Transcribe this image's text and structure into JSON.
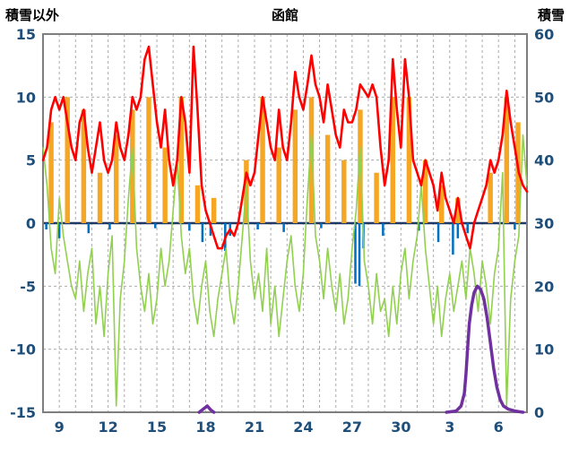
{
  "chart_data": {
    "type": "line",
    "title": "函館",
    "axes": {
      "left": {
        "label": "積雪以外",
        "min": -15,
        "max": 15,
        "tick_values": [
          15,
          10,
          5,
          0,
          -5,
          -10,
          -15
        ]
      },
      "right": {
        "label": "積雪",
        "min": 0,
        "max": 60,
        "tick_values": [
          60,
          50,
          40,
          30,
          20,
          10,
          0
        ]
      },
      "x": {
        "min": 0,
        "max": 29.75,
        "grid_step": 1,
        "tick_positions": [
          1,
          4,
          7,
          10,
          13,
          16,
          19,
          22,
          25,
          28
        ],
        "tick_labels": [
          "9",
          "12",
          "15",
          "18",
          "21",
          "24",
          "27",
          "30",
          "3",
          "6"
        ]
      }
    },
    "style": {
      "plot_bg": "#FFFFFF",
      "grid_color": "#ABABAB",
      "border_color": "#7F7F7F",
      "zero_line_color": "#1F3864",
      "tick_label_color": "#1F4E79"
    },
    "series": [
      {
        "name": "orange-bars",
        "type": "bar",
        "axis": "left",
        "color": "#F5A623",
        "bar_width": 0.3,
        "points": [
          [
            0.5,
            8
          ],
          [
            1.5,
            10
          ],
          [
            2.5,
            9
          ],
          [
            3.5,
            4
          ],
          [
            4.5,
            7
          ],
          [
            5.5,
            9
          ],
          [
            6.5,
            10
          ],
          [
            7.5,
            6
          ],
          [
            8.5,
            10
          ],
          [
            9.5,
            3
          ],
          [
            10.5,
            2
          ],
          [
            12.5,
            5
          ],
          [
            13.5,
            10
          ],
          [
            14.5,
            6
          ],
          [
            15.5,
            9
          ],
          [
            16.5,
            10
          ],
          [
            17.5,
            7
          ],
          [
            18.5,
            5
          ],
          [
            19.5,
            9
          ],
          [
            20.5,
            4
          ],
          [
            21.5,
            10
          ],
          [
            22.5,
            10
          ],
          [
            23.5,
            5
          ],
          [
            24.5,
            3
          ],
          [
            25.5,
            2
          ],
          [
            27.5,
            4
          ],
          [
            28.5,
            10
          ],
          [
            29.2,
            8
          ]
        ]
      },
      {
        "name": "blue-bars",
        "type": "bar",
        "axis": "left",
        "color": "#0070C0",
        "bar_width": 0.14,
        "points": [
          [
            0.2,
            -0.5
          ],
          [
            1.0,
            -1.2
          ],
          [
            2.8,
            -0.8
          ],
          [
            4.1,
            -0.5
          ],
          [
            6.9,
            -0.4
          ],
          [
            9.0,
            -0.6
          ],
          [
            9.8,
            -1.5
          ],
          [
            10.3,
            -1.0
          ],
          [
            11.2,
            -2.2
          ],
          [
            11.5,
            -1.0
          ],
          [
            13.2,
            -0.5
          ],
          [
            14.8,
            -0.7
          ],
          [
            17.1,
            -0.4
          ],
          [
            19.2,
            -4.8
          ],
          [
            19.45,
            -5.0
          ],
          [
            19.7,
            -2.0
          ],
          [
            20.9,
            -1.0
          ],
          [
            23.1,
            -0.6
          ],
          [
            24.3,
            -1.5
          ],
          [
            25.2,
            -2.5
          ],
          [
            25.5,
            -1.2
          ],
          [
            26.1,
            -0.8
          ],
          [
            29.0,
            -0.5
          ]
        ]
      },
      {
        "name": "green-line",
        "type": "line",
        "axis": "left",
        "color": "#92D050",
        "line_width": 1.6,
        "x0": 0,
        "dx": 0.25,
        "values": [
          6,
          3,
          -2,
          -4,
          2,
          -1,
          -3,
          -5,
          -6,
          -3,
          -7,
          -4,
          -2,
          -8,
          -5,
          -9,
          -4,
          -1,
          -14.5,
          -6,
          -3,
          2,
          6,
          -2,
          -5,
          -7,
          -4,
          -8,
          -6,
          -2,
          -5,
          -3,
          1,
          5,
          -1,
          -4,
          -2,
          -6,
          -8,
          -5,
          -3,
          -7,
          -9,
          -6,
          -4,
          -2,
          -6,
          -8,
          -5,
          -1,
          3,
          -3,
          -6,
          -4,
          -7,
          -2,
          -8,
          -5,
          -9,
          -6,
          -3,
          -1,
          -5,
          -7,
          -4,
          2,
          7,
          -1,
          -3,
          -6,
          -2,
          -5,
          -7,
          -4,
          -8,
          -6,
          -2,
          1,
          6,
          -3,
          -5,
          -8,
          -4,
          -7,
          -6,
          -9,
          -5,
          -8,
          -4,
          -2,
          -6,
          -3,
          -1,
          3,
          -2,
          -5,
          -8,
          -5,
          -9,
          -6,
          -4,
          -7,
          -5,
          -3,
          -6,
          -2,
          -4,
          -7,
          -3,
          -5,
          -8,
          -4,
          -2,
          4,
          -14.5,
          -6,
          -3,
          -1,
          7,
          3
        ]
      },
      {
        "name": "red-line",
        "type": "line",
        "axis": "left",
        "color": "#FF0000",
        "line_width": 2.6,
        "x0": 0,
        "dx": 0.25,
        "values": [
          5,
          6,
          9,
          10,
          9,
          10,
          8,
          6,
          5,
          8,
          9,
          6,
          4,
          6,
          8,
          5,
          4,
          5,
          8,
          6,
          5,
          7,
          10,
          9,
          10,
          13,
          14,
          11,
          8,
          6,
          9,
          5,
          3,
          5,
          10,
          8,
          4,
          14,
          9,
          3,
          1,
          0,
          -1,
          -2,
          -2,
          -1,
          -0.5,
          -1,
          0,
          2,
          4,
          3,
          4,
          7,
          10,
          8,
          6,
          5,
          9,
          6,
          5,
          8,
          12,
          10,
          9,
          11,
          13.3,
          11,
          10,
          8,
          11,
          9,
          7,
          6,
          9,
          8,
          8,
          9,
          11,
          10.5,
          10,
          11,
          10,
          6,
          3,
          5,
          13,
          9,
          6,
          13,
          10,
          5,
          4,
          3,
          5,
          4,
          3,
          1,
          4,
          2,
          1,
          0,
          2,
          0,
          -1,
          -2,
          0,
          1,
          2,
          3,
          5,
          4,
          5,
          7,
          10.5,
          8,
          6,
          4,
          3,
          2.5
        ]
      },
      {
        "name": "purple-line-bump",
        "type": "line",
        "axis": "right",
        "color": "#7030A0",
        "line_width": 3.5,
        "x": [
          9.6,
          9.9,
          10.1,
          10.3,
          10.5
        ],
        "values": [
          0,
          0.6,
          1,
          0.4,
          0
        ]
      },
      {
        "name": "purple-line",
        "type": "line",
        "axis": "right",
        "color": "#7030A0",
        "line_width": 3.5,
        "x": [
          24.8,
          25.4,
          25.7,
          25.9,
          26.0,
          26.1,
          26.2,
          26.35,
          26.5,
          26.7,
          26.9,
          27.1,
          27.3,
          27.5,
          27.7,
          27.9,
          28.1,
          28.3,
          28.6,
          29.0,
          29.5
        ],
        "values": [
          0,
          0.2,
          1,
          3,
          6,
          10,
          14,
          17,
          19,
          20,
          19.5,
          18,
          15,
          11,
          7,
          4,
          2,
          1,
          0.5,
          0.2,
          0
        ]
      }
    ]
  }
}
